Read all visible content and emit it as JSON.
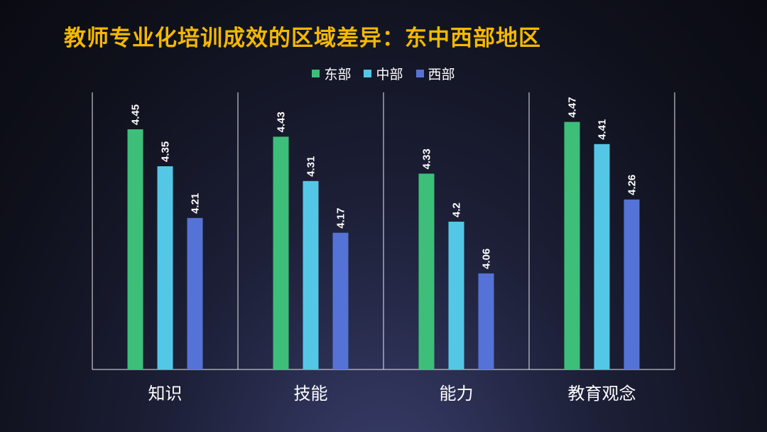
{
  "slide": {
    "title": "教师专业化培训成效的区域差异：东中西部地区"
  },
  "chart_data": {
    "type": "bar",
    "categories": [
      "知识",
      "技能",
      "能力",
      "教育观念"
    ],
    "series": [
      {
        "name": "东部",
        "color": "#3dbf7a",
        "values": [
          4.45,
          4.43,
          4.33,
          4.47
        ]
      },
      {
        "name": "中部",
        "color": "#55c7e6",
        "values": [
          4.35,
          4.31,
          4.2,
          4.41
        ]
      },
      {
        "name": "西部",
        "color": "#5573d6",
        "values": [
          4.21,
          4.17,
          4.06,
          4.26
        ]
      }
    ],
    "value_labels": [
      [
        "4.45",
        "4.43",
        "4.33",
        "4.47"
      ],
      [
        "4.35",
        "4.31",
        "4.2",
        "4.41"
      ],
      [
        "4.21",
        "4.17",
        "4.06",
        "4.26"
      ]
    ],
    "ylim": [
      3.8,
      4.55
    ],
    "legend_position": "top-center",
    "grid": false,
    "category_separators": true
  }
}
